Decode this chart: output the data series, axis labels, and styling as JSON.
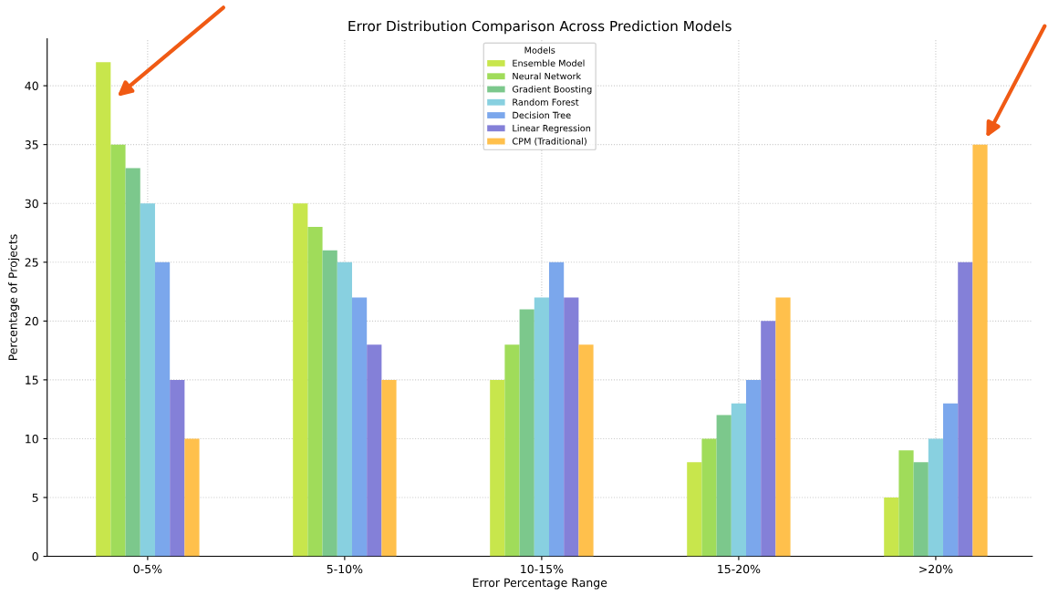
{
  "chart_data": {
    "type": "bar",
    "title": "Error Distribution Comparison Across Prediction Models",
    "xlabel": "Error Percentage Range",
    "ylabel": "Percentage of Projects",
    "legend_title": "Models",
    "legend": "top",
    "grid": true,
    "categories": [
      "0-5%",
      "5-10%",
      "10-15%",
      "15-20%",
      ">20%"
    ],
    "ylim": [
      0,
      44
    ],
    "yticks": [
      0,
      5,
      10,
      15,
      20,
      25,
      30,
      35,
      40
    ],
    "series": [
      {
        "name": "Ensemble Model",
        "color": "#c8e64c",
        "values": [
          42,
          30,
          15,
          8,
          5
        ]
      },
      {
        "name": "Neural Network",
        "color": "#a0dc5a",
        "values": [
          35,
          28,
          18,
          10,
          9
        ]
      },
      {
        "name": "Gradient Boosting",
        "color": "#7cc88c",
        "values": [
          33,
          26,
          21,
          12,
          8
        ]
      },
      {
        "name": "Random Forest",
        "color": "#88d0e0",
        "values": [
          30,
          25,
          22,
          13,
          10
        ]
      },
      {
        "name": "Decision Tree",
        "color": "#7ba7ec",
        "values": [
          25,
          22,
          25,
          15,
          13
        ]
      },
      {
        "name": "Linear Regression",
        "color": "#8480d8",
        "values": [
          15,
          18,
          22,
          20,
          25
        ]
      },
      {
        "name": "CPM (Traditional)",
        "color": "#ffc04c",
        "values": [
          10,
          15,
          18,
          22,
          35
        ]
      }
    ]
  }
}
